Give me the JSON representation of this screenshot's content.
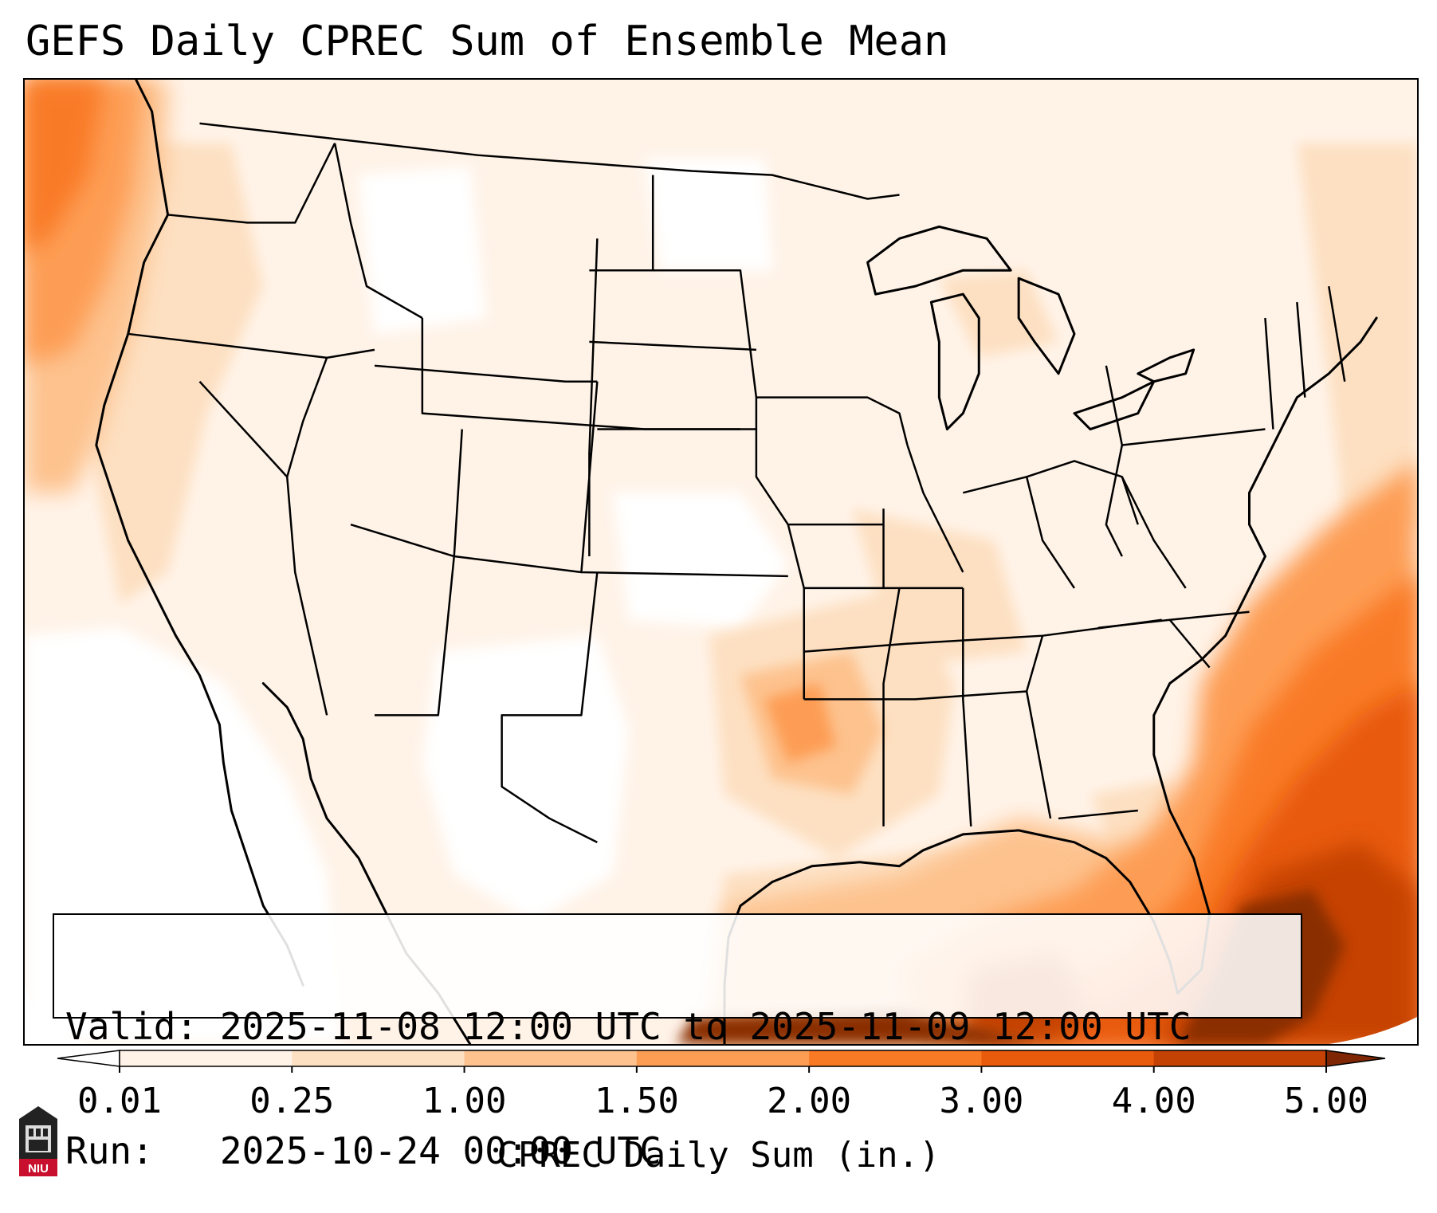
{
  "title": "GEFS Daily CPREC Sum of Ensemble Mean",
  "info": {
    "valid_line": "Valid: 2025-11-08 12:00 UTC to 2025-11-09 12:00 UTC",
    "run_line": "Run:   2025-10-24 00:00 UTC"
  },
  "colorbar": {
    "label": "CPREC Daily Sum (in.)",
    "ticks": [
      "0.01",
      "0.25",
      "1.00",
      "1.50",
      "2.00",
      "3.00",
      "4.00",
      "5.00"
    ],
    "colors": [
      "#fff3e8",
      "#fde0c2",
      "#fdc28e",
      "#fd9d54",
      "#f97a25",
      "#e85a0c",
      "#c54205",
      "#8a2f05"
    ],
    "under_color": "#ffffff",
    "over_color": "#7f2704"
  },
  "logo": {
    "text": "NIU",
    "color": "#c8102e"
  }
}
